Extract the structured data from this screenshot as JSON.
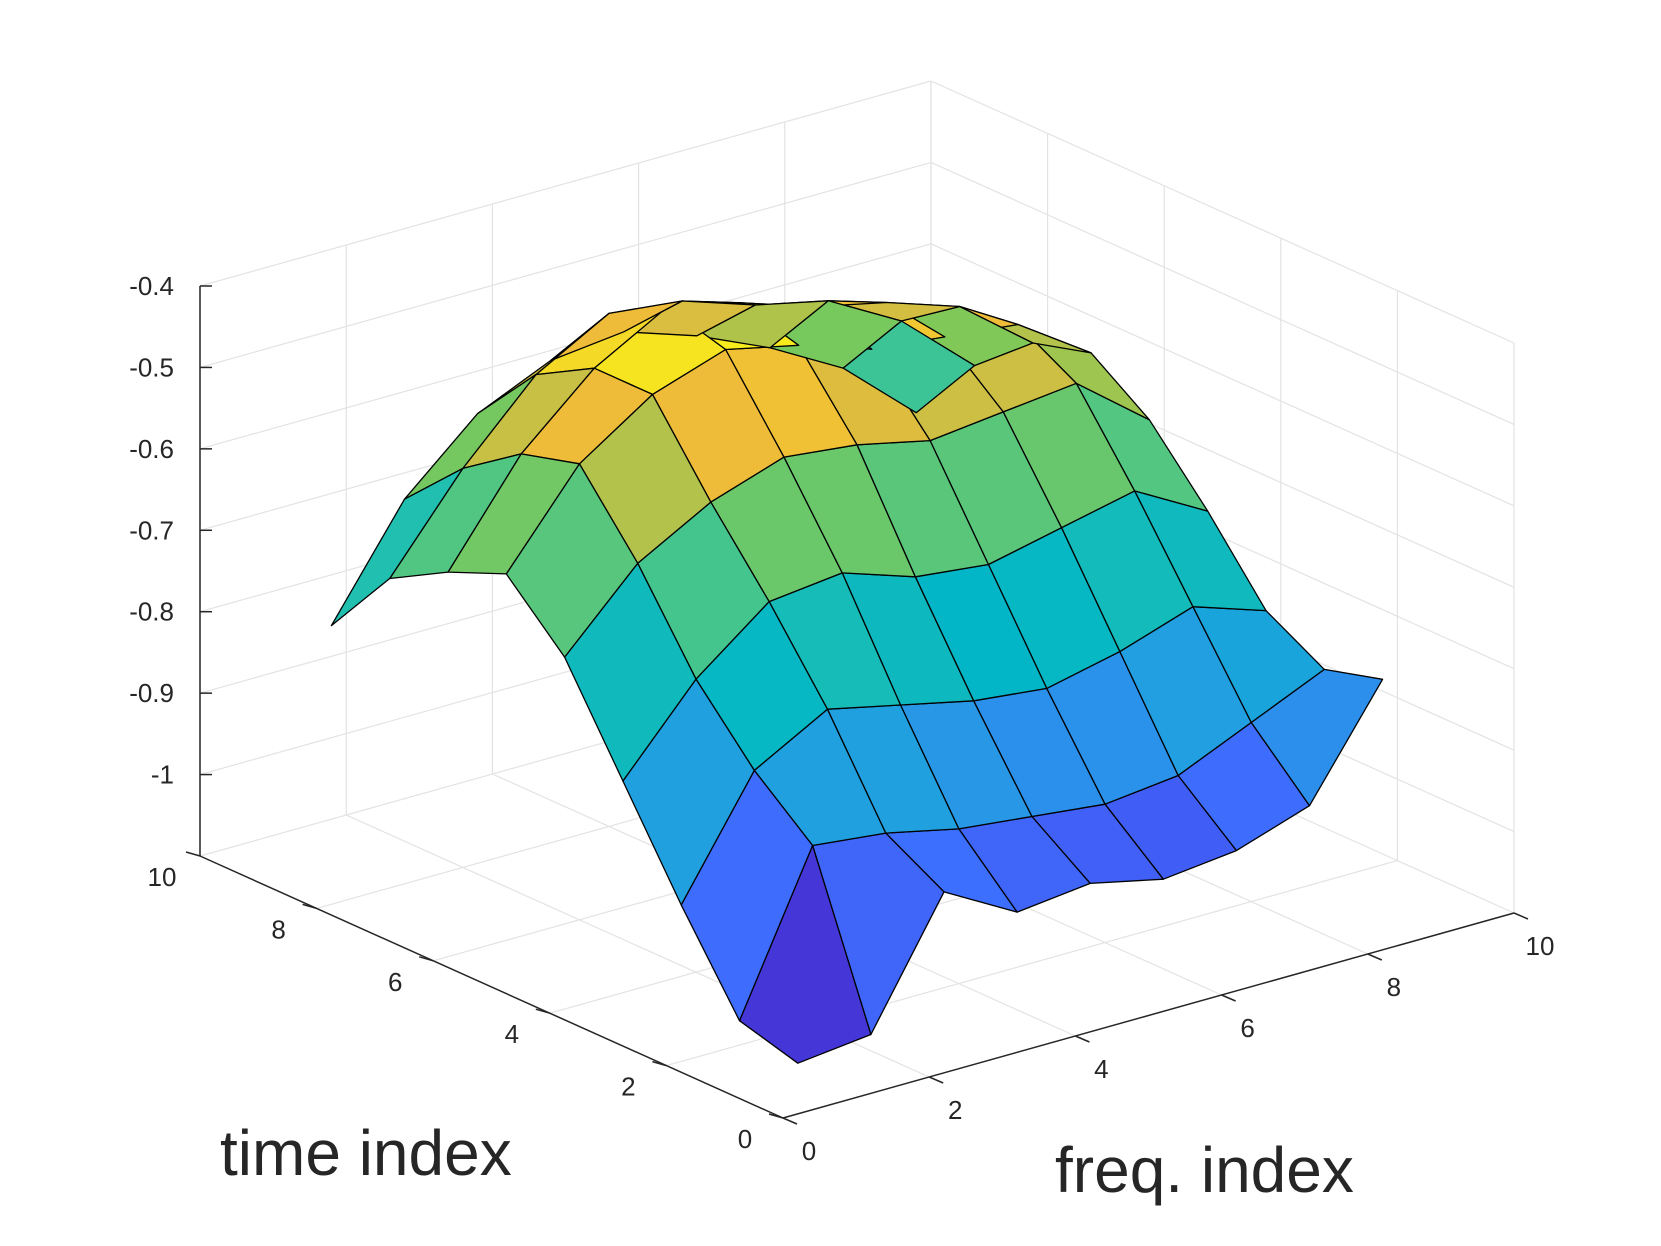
{
  "chart_data": {
    "type": "surface",
    "xlabel": "freq. index",
    "ylabel": "time index",
    "zlabel": "",
    "xlim": [
      0,
      10
    ],
    "ylim": [
      0,
      10
    ],
    "zlim": [
      -1.1,
      -0.4
    ],
    "x_ticks": [
      0,
      2,
      4,
      6,
      8,
      10
    ],
    "y_ticks": [
      0,
      2,
      4,
      6,
      8,
      10
    ],
    "z_ticks": [
      -0.4,
      -0.5,
      -0.6,
      -0.7,
      -0.8,
      -0.9,
      -1
    ],
    "x_tick_labels": [
      "0",
      "2",
      "4",
      "6",
      "8",
      "10"
    ],
    "y_tick_labels": [
      "0",
      "2",
      "4",
      "6",
      "8",
      "10"
    ],
    "z_tick_labels": [
      "-0.4",
      "-0.5",
      "-0.6",
      "-0.7",
      "-0.8",
      "-0.9",
      "-1"
    ],
    "grid": true,
    "colormap": "parula",
    "edge_color": "#000000",
    "x": [
      1,
      2,
      3,
      4,
      5,
      6,
      7,
      8,
      9
    ],
    "y": [
      1,
      2,
      3,
      4,
      5,
      6,
      7,
      8,
      9
    ],
    "z": [
      [
        -1.09,
        -1.08,
        -0.93,
        -0.98,
        -0.97,
        -0.99,
        -0.98,
        -0.95,
        -0.82
      ],
      [
        -1.07,
        -0.88,
        -0.89,
        -0.91,
        -0.92,
        -0.93,
        -0.92,
        -0.88,
        -0.84
      ],
      [
        -0.96,
        -0.82,
        -0.77,
        -0.79,
        -0.81,
        -0.82,
        -0.8,
        -0.77,
        -0.8
      ],
      [
        -0.84,
        -0.74,
        -0.67,
        -0.66,
        -0.69,
        -0.7,
        -0.68,
        -0.66,
        -0.71
      ],
      [
        -0.72,
        -0.63,
        -0.58,
        -0.55,
        -0.56,
        -0.58,
        -0.57,
        -0.56,
        -0.63
      ],
      [
        -0.65,
        -0.54,
        -0.48,
        -0.45,
        -0.47,
        -0.5,
        -0.51,
        -0.52,
        -0.58
      ],
      [
        -0.68,
        -0.56,
        -0.48,
        -0.43,
        -0.45,
        -0.48,
        -0.5,
        -0.53,
        -0.6
      ],
      [
        -0.72,
        -0.61,
        -0.52,
        -0.47,
        -0.48,
        -0.51,
        -0.53,
        -0.58,
        -0.66
      ],
      [
        -0.81,
        -0.68,
        -0.6,
        -0.56,
        -0.55,
        -0.58,
        -0.62,
        -0.67,
        -0.75
      ]
    ]
  }
}
